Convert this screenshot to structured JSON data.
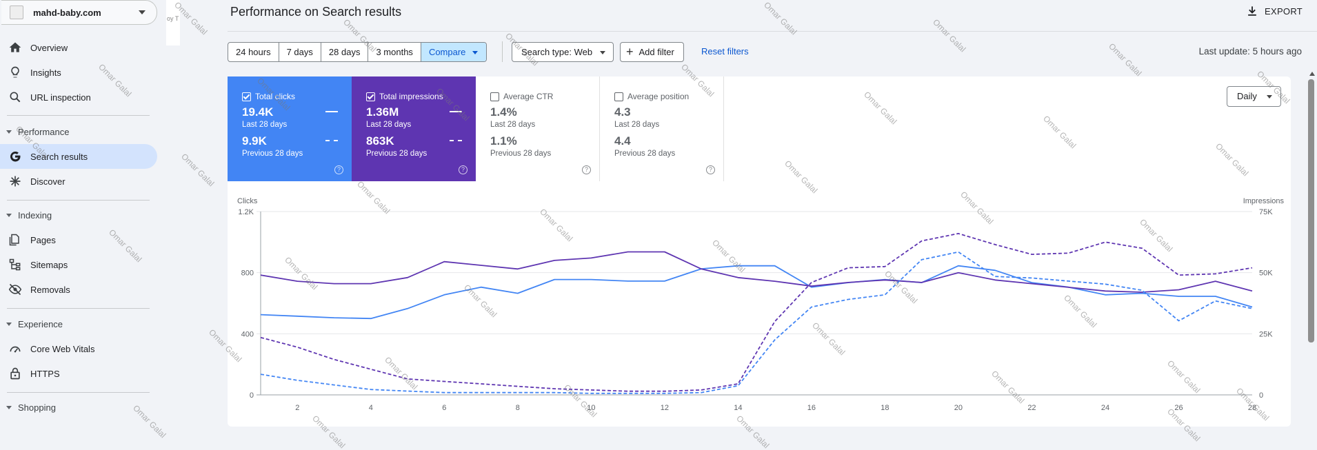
{
  "property": {
    "name": "mahd-baby.com"
  },
  "sidebar": {
    "top_items": [
      {
        "label": "Overview",
        "icon": "home-icon"
      },
      {
        "label": "Insights",
        "icon": "lightbulb-icon"
      },
      {
        "label": "URL inspection",
        "icon": "search-icon"
      }
    ],
    "performance": {
      "label": "Performance",
      "items": [
        {
          "label": "Search results",
          "icon": "google-g-icon",
          "active": true
        },
        {
          "label": "Discover",
          "icon": "asterisk-icon"
        }
      ]
    },
    "indexing": {
      "label": "Indexing",
      "items": [
        {
          "label": "Pages",
          "icon": "pages-icon"
        },
        {
          "label": "Sitemaps",
          "icon": "sitemap-icon"
        },
        {
          "label": "Removals",
          "icon": "eye-off-icon"
        }
      ]
    },
    "experience": {
      "label": "Experience",
      "items": [
        {
          "label": "Core Web Vitals",
          "icon": "speed-icon"
        },
        {
          "label": "HTTPS",
          "icon": "lock-icon"
        }
      ]
    },
    "shopping": {
      "label": "Shopping"
    }
  },
  "strip_text": "oy T",
  "header": {
    "title": "Performance on Search results",
    "export_label": "EXPORT"
  },
  "filters": {
    "date_ranges": [
      "24 hours",
      "7 days",
      "28 days",
      "3 months"
    ],
    "compare_label": "Compare",
    "search_type": "Search type: Web",
    "add_filter": "Add filter",
    "reset": "Reset filters",
    "last_update": "Last update: 5 hours ago"
  },
  "metrics": {
    "clicks": {
      "label": "Total clicks",
      "checked": true,
      "current": "19.4K",
      "current_period": "Last 28 days",
      "previous": "9.9K",
      "previous_period": "Previous 28 days",
      "color": "#4285f4"
    },
    "impressions": {
      "label": "Total impressions",
      "checked": true,
      "current": "1.36M",
      "current_period": "Last 28 days",
      "previous": "863K",
      "previous_period": "Previous 28 days",
      "color": "#5e35b1"
    },
    "ctr": {
      "label": "Average CTR",
      "checked": false,
      "current": "1.4%",
      "current_period": "Last 28 days",
      "previous": "1.1%",
      "previous_period": "Previous 28 days"
    },
    "position": {
      "label": "Average position",
      "checked": false,
      "current": "4.3",
      "current_period": "Last 28 days",
      "previous": "4.4",
      "previous_period": "Previous 28 days"
    }
  },
  "granularity": "Daily",
  "chart_data": {
    "type": "line",
    "ylabel": "Clicks",
    "y2label": "Impressions",
    "ylim": [
      0,
      1200
    ],
    "y2lim": [
      0,
      75000
    ],
    "y_ticks": [
      "0",
      "400",
      "800",
      "1.2K"
    ],
    "y2_ticks": [
      "0",
      "25K",
      "50K",
      "75K"
    ],
    "x": [
      1,
      2,
      3,
      4,
      5,
      6,
      7,
      8,
      9,
      10,
      11,
      12,
      13,
      14,
      15,
      16,
      17,
      18,
      19,
      20,
      21,
      22,
      23,
      24,
      25,
      26,
      27,
      28
    ],
    "x_ticks": [
      "2",
      "4",
      "6",
      "8",
      "10",
      "12",
      "14",
      "16",
      "18",
      "20",
      "22",
      "24",
      "26",
      "28"
    ],
    "grid": true,
    "series": [
      {
        "name": "Total clicks",
        "axis": "left",
        "style": "solid",
        "color": "#4285f4",
        "values": [
          525,
          515,
          505,
          500,
          565,
          655,
          705,
          665,
          755,
          755,
          745,
          745,
          825,
          845,
          845,
          705,
          735,
          755,
          735,
          845,
          815,
          735,
          705,
          655,
          665,
          645,
          645,
          575
        ]
      },
      {
        "name": "Total impressions",
        "axis": "right",
        "style": "solid",
        "color": "#5e35b1",
        "values": [
          49000,
          46500,
          45500,
          45500,
          48000,
          54500,
          53000,
          51500,
          55000,
          56000,
          58500,
          58500,
          51500,
          48000,
          46500,
          44500,
          46000,
          47000,
          46000,
          50000,
          47000,
          45500,
          44000,
          42500,
          42000,
          43000,
          46500,
          42500
        ]
      },
      {
        "name": "Total clicks (previous)",
        "axis": "left",
        "style": "dashed",
        "color": "#4285f4",
        "values": [
          135,
          95,
          65,
          35,
          25,
          15,
          15,
          15,
          15,
          10,
          10,
          10,
          15,
          60,
          360,
          575,
          625,
          655,
          885,
          935,
          775,
          765,
          745,
          725,
          685,
          485,
          615,
          565
        ]
      },
      {
        "name": "Total impressions (previous)",
        "axis": "right",
        "style": "dashed",
        "color": "#5e35b1",
        "values": [
          23500,
          19500,
          14500,
          10500,
          6500,
          5500,
          4500,
          3500,
          2500,
          2000,
          1500,
          1500,
          2000,
          4500,
          30000,
          46000,
          52000,
          52500,
          63000,
          66000,
          61500,
          57500,
          58000,
          62500,
          60000,
          49000,
          49500,
          52000
        ]
      }
    ]
  }
}
